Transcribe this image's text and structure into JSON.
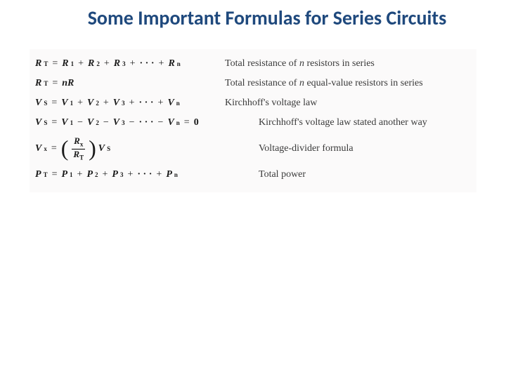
{
  "title": "Some Important Formulas for Series Circuits",
  "style": {
    "title_color": "#1f497d",
    "title_fontsize": 28,
    "title_font": "Calibri",
    "body_font": "Times New Roman",
    "formula_fontsize": 14,
    "desc_fontsize": 14,
    "background": "#ffffff",
    "block_background": "#fbfafa",
    "text_color": "#1a1a1a",
    "desc_color": "#3a3a3a"
  },
  "formulas": [
    {
      "lhs_var": "R",
      "lhs_sub": "T",
      "terms": [
        {
          "v": "R",
          "s": "1"
        },
        {
          "v": "R",
          "s": "2"
        },
        {
          "v": "R",
          "s": "3"
        },
        {
          "dots": true
        },
        {
          "v": "R",
          "s": "n"
        }
      ],
      "op": "+",
      "desc": "Total resistance of n resistors in series"
    },
    {
      "lhs_var": "R",
      "lhs_sub": "T",
      "rhs_plain_coef": "n",
      "rhs_plain_var": "R",
      "desc": "Total resistance of n equal-value resistors in series"
    },
    {
      "lhs_var": "V",
      "lhs_sub": "S",
      "terms": [
        {
          "v": "V",
          "s": "1"
        },
        {
          "v": "V",
          "s": "2"
        },
        {
          "v": "V",
          "s": "3"
        },
        {
          "dots": true
        },
        {
          "v": "V",
          "s": "n"
        }
      ],
      "op": "+",
      "desc": "Kirchhoff's voltage law"
    },
    {
      "lhs_var": "V",
      "lhs_sub": "S",
      "terms": [
        {
          "v": "V",
          "s": "1"
        },
        {
          "v": "V",
          "s": "2"
        },
        {
          "v": "V",
          "s": "3"
        },
        {
          "dots": true
        },
        {
          "v": "V",
          "s": "n"
        }
      ],
      "op": "−",
      "eqzero": "0",
      "desc": "Kirchhoff's voltage law stated another way",
      "desc_shift": true
    },
    {
      "lhs_var": "V",
      "lhs_sub": "x",
      "fraction": {
        "top_var": "R",
        "top_sub": "x",
        "bot_var": "R",
        "bot_sub": "T"
      },
      "tail_var": "V",
      "tail_sub": "S",
      "desc": "Voltage-divider formula",
      "desc_shift": true,
      "tall": true
    },
    {
      "lhs_var": "P",
      "lhs_sub": "T",
      "terms": [
        {
          "v": "P",
          "s": "1"
        },
        {
          "v": "P",
          "s": "2"
        },
        {
          "v": "P",
          "s": "3"
        },
        {
          "dots": true
        },
        {
          "v": "P",
          "s": "n"
        }
      ],
      "op": "+",
      "desc": "Total power",
      "desc_shift": true
    }
  ]
}
